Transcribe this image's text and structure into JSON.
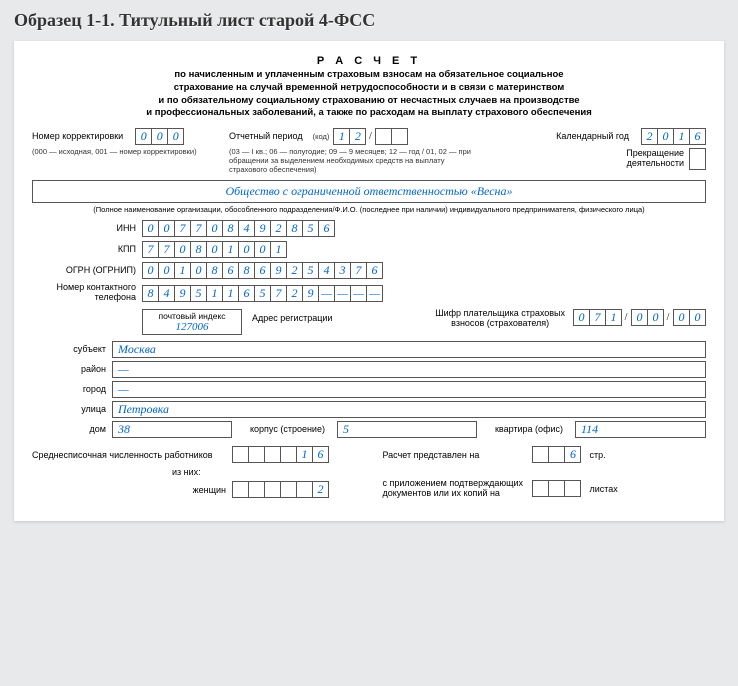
{
  "header": "Образец 1-1. Титульный лист старой 4-ФСС",
  "title": {
    "main": "Р А С Ч Е Т",
    "sub1": "по начисленным и уплаченным страховым взносам на обязательное социальное",
    "sub2": "страхование на случай временной нетрудоспособности и в связи с материнством",
    "sub3": "и по обязательному социальному страхованию от несчастных случаев на производстве",
    "sub4": "и профессиональных заболеваний, а также по расходам на выплату страхового обеспечения"
  },
  "correction": {
    "label": "Номер корректировки",
    "cells": [
      "0",
      "0",
      "0"
    ],
    "note": "(000 — исходная, 001 — номер корректировки)"
  },
  "period": {
    "label": "Отчетный период",
    "code_label": "(код)",
    "cells1": [
      "1",
      "2"
    ],
    "cells2": [
      "",
      ""
    ],
    "note": "(03 — I кв.; 06 — полугодие; 09 — 9 месяцев; 12 — год / 01, 02 — при обращении за выделением необходимых средств на выплату страхового обеспечения)"
  },
  "year": {
    "label": "Календарный год",
    "cells": [
      "2",
      "0",
      "1",
      "6"
    ]
  },
  "cessation": {
    "label1": "Прекращение",
    "label2": "деятельности"
  },
  "org": {
    "name": "Общество с ограниченной ответственностью «Весна»",
    "note": "(Полное наименование организации, обособленного подразделения/Ф.И.О. (последнее при наличии) индивидуального предпринимателя, физического лица)"
  },
  "inn": {
    "label": "ИНН",
    "cells": [
      "0",
      "0",
      "7",
      "7",
      "0",
      "8",
      "4",
      "9",
      "2",
      "8",
      "5",
      "6"
    ]
  },
  "kpp": {
    "label": "КПП",
    "cells": [
      "7",
      "7",
      "0",
      "8",
      "0",
      "1",
      "0",
      "0",
      "1"
    ]
  },
  "ogrn": {
    "label": "ОГРН (ОГРНИП)",
    "cells": [
      "0",
      "0",
      "1",
      "0",
      "8",
      "6",
      "8",
      "6",
      "9",
      "2",
      "5",
      "4",
      "3",
      "7",
      "6"
    ]
  },
  "phone": {
    "label": "Номер контактного телефона",
    "cells": [
      "8",
      "4",
      "9",
      "5",
      "1",
      "1",
      "6",
      "5",
      "7",
      "2",
      "9",
      "—",
      "—",
      "—",
      "—"
    ]
  },
  "post": {
    "top": "почтовый индекс",
    "val": "127006",
    "addr_label": "Адрес регистрации"
  },
  "payer_code": {
    "label1": "Шифр плательщика страховых",
    "label2": "взносов (страхователя)",
    "g1": [
      "0",
      "7",
      "1"
    ],
    "g2": [
      "0",
      "0"
    ],
    "g3": [
      "0",
      "0"
    ]
  },
  "addr": {
    "subject_label": "субъект",
    "subject": "Москва",
    "district_label": "район",
    "district": "—",
    "city_label": "город",
    "city": "—",
    "street_label": "улица",
    "street": "Петровка",
    "house_label": "дом",
    "house": "38",
    "building_label": "корпус (строение)",
    "building": "5",
    "flat_label": "квартира (офис)",
    "flat": "114"
  },
  "bottom": {
    "avg_label": "Среднесписочная численность работников",
    "avg_cells": [
      "",
      "",
      "",
      "",
      "1",
      "6"
    ],
    "ofthem": "из них:",
    "women_label": "женщин",
    "women_cells": [
      "",
      "",
      "",
      "",
      "",
      "2"
    ],
    "presented_label": "Расчет представлен на",
    "presented_cells": [
      "",
      "",
      "6"
    ],
    "pages": "стр.",
    "attach_label1": "с приложением подтверждающих",
    "attach_label2": "документов или их копий на",
    "attach_cells": [
      "",
      "",
      ""
    ],
    "sheets": "листах"
  },
  "colors": {
    "value_color": "#0066cc",
    "border": "#555555",
    "bg": "#e8e9eb"
  }
}
